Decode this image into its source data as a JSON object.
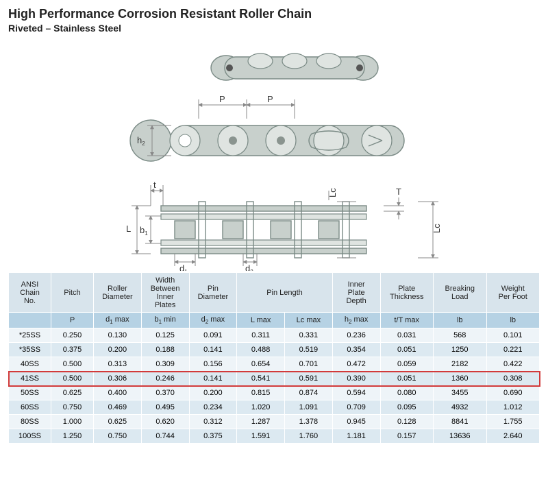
{
  "header": {
    "title": "High Performance Corrosion Resistant Roller Chain",
    "subtitle": "Riveted – Stainless Steel"
  },
  "diagram": {
    "stroke": "#7a8a85",
    "fill": "#c8d0cc",
    "light": "#e5e9e7",
    "labels": [
      "P",
      "P",
      "h2",
      "t",
      "L",
      "b1",
      "d1",
      "d2",
      "Lc",
      "T",
      "Lc"
    ],
    "label_fontsize": 13
  },
  "table": {
    "header_bg": "#d8e4ec",
    "symbol_bg": "#b6d2e4",
    "row_odd_bg": "#eef4f8",
    "row_even_bg": "#dce9f1",
    "highlight_border": "#d23a3a",
    "columns": [
      {
        "label": "ANSI\nChain\nNo.",
        "sym": ""
      },
      {
        "label": "Pitch",
        "sym": "P"
      },
      {
        "label": "Roller\nDiameter",
        "sym": "d1 max"
      },
      {
        "label": "Width\nBetween\nInner\nPlates",
        "sym": "b1 min"
      },
      {
        "label": "Pin\nDiameter",
        "sym": "d2 max"
      },
      {
        "label": "Pin Length",
        "sym": "L max",
        "span": 2,
        "sym2": "Lc max"
      },
      {
        "label": "Inner\nPlate\nDepth",
        "sym": "h2 max"
      },
      {
        "label": "Plate\nThickness",
        "sym": "t/T max"
      },
      {
        "label": "Breaking\nLoad",
        "sym": "lb"
      },
      {
        "label": "Weight\nPer Foot",
        "sym": "lb"
      }
    ],
    "highlight_row_index": 3,
    "rows": [
      [
        "*25SS",
        "0.250",
        "0.130",
        "0.125",
        "0.091",
        "0.311",
        "0.331",
        "0.236",
        "0.031",
        "568",
        "0.101"
      ],
      [
        "*35SS",
        "0.375",
        "0.200",
        "0.188",
        "0.141",
        "0.488",
        "0.519",
        "0.354",
        "0.051",
        "1250",
        "0.221"
      ],
      [
        "40SS",
        "0.500",
        "0.313",
        "0.309",
        "0.156",
        "0.654",
        "0.701",
        "0.472",
        "0.059",
        "2182",
        "0.422"
      ],
      [
        "41SS",
        "0.500",
        "0.306",
        "0.246",
        "0.141",
        "0.541",
        "0.591",
        "0.390",
        "0.051",
        "1360",
        "0.308"
      ],
      [
        "50SS",
        "0.625",
        "0.400",
        "0.370",
        "0.200",
        "0.815",
        "0.874",
        "0.594",
        "0.080",
        "3455",
        "0.690"
      ],
      [
        "60SS",
        "0.750",
        "0.469",
        "0.495",
        "0.234",
        "1.020",
        "1.091",
        "0.709",
        "0.095",
        "4932",
        "1.012"
      ],
      [
        "80SS",
        "1.000",
        "0.625",
        "0.620",
        "0.312",
        "1.287",
        "1.378",
        "0.945",
        "0.128",
        "8841",
        "1.755"
      ],
      [
        "100SS",
        "1.250",
        "0.750",
        "0.744",
        "0.375",
        "1.591",
        "1.760",
        "1.181",
        "0.157",
        "13636",
        "2.640"
      ]
    ]
  }
}
